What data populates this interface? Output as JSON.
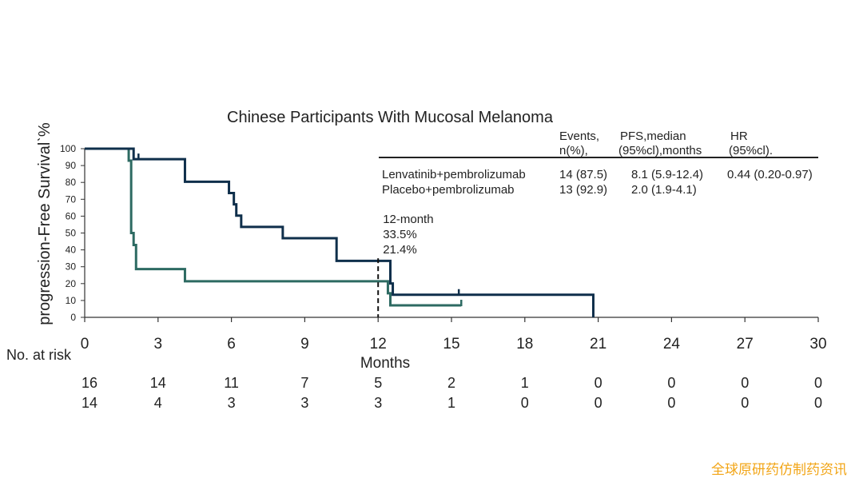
{
  "watermark": "全球原研药仿制药资讯",
  "chart_data": {
    "type": "line",
    "title": "Chinese Participants With Mucosal Melanoma",
    "ylabel": "progression-Free Survivalˋ%",
    "xlabel": "Months",
    "xlim": [
      0,
      30
    ],
    "ylim": [
      0,
      100
    ],
    "xticks": [
      0,
      3,
      6,
      9,
      12,
      15,
      18,
      21,
      24,
      27,
      30
    ],
    "yticks": [
      0,
      10,
      20,
      30,
      40,
      50,
      60,
      70,
      80,
      90,
      100
    ],
    "series": [
      {
        "name": "Lenvatinib+pembrolizumab",
        "color": "#0f2f4b",
        "x": [
          0,
          2.0,
          2.0,
          4.1,
          4.1,
          5.9,
          5.9,
          6.1,
          6.1,
          6.2,
          6.2,
          6.4,
          6.4,
          8.1,
          8.1,
          10.3,
          10.3,
          12.5,
          12.5,
          12.6,
          12.6,
          20.8,
          20.8
        ],
        "y": [
          100,
          100,
          93.8,
          93.8,
          80.4,
          80.4,
          73.7,
          73.7,
          67,
          67,
          60.3,
          60.3,
          53.6,
          53.6,
          46.9,
          46.9,
          33.5,
          33.5,
          20.1,
          20.1,
          13.4,
          13.4,
          0
        ],
        "censor_x": [
          2.2,
          15.3
        ],
        "censor_y": [
          93.8,
          13.4
        ]
      },
      {
        "name": "Placebo+pembrolizumab",
        "color": "#2d6a62",
        "x": [
          0,
          1.8,
          1.8,
          1.9,
          1.9,
          2.0,
          2.0,
          2.1,
          2.1,
          4.1,
          4.1,
          12.4,
          12.4,
          12.5,
          12.5,
          15.4
        ],
        "y": [
          100,
          100,
          92.9,
          92.9,
          50,
          50,
          42.9,
          42.9,
          28.6,
          28.6,
          21.4,
          21.4,
          14.3,
          14.3,
          7.1,
          7.1
        ],
        "censor_x": [
          15.4
        ],
        "censor_y": [
          7.1
        ]
      }
    ],
    "legend_headers": {
      "events": [
        "Events,",
        "n(%),"
      ],
      "pfs": [
        "PFS,median",
        "(95%cl),months"
      ],
      "hr": [
        "HR",
        "(95%cl)."
      ]
    },
    "legend_rows": [
      {
        "name": "Lenvatinib+pembrolizumab",
        "events": "14 (87.5)",
        "pfs": "8.1 (5.9-12.4)",
        "hr": "0.44 (0.20-0.97)"
      },
      {
        "name": "Placebo+pembrolizumab",
        "events": "13 (92.9)",
        "pfs": "2.0 (1.9-4.1)",
        "hr": ""
      }
    ],
    "annotation": {
      "x": 12,
      "lines": [
        "12-month",
        "33.5%",
        "21.4%"
      ]
    },
    "risk_table": {
      "label": "No. at risk",
      "rows": [
        [
          16,
          14,
          11,
          7,
          5,
          2,
          1,
          0,
          0,
          0,
          0
        ],
        [
          14,
          4,
          3,
          3,
          3,
          1,
          0,
          0,
          0,
          0,
          0
        ]
      ]
    }
  }
}
